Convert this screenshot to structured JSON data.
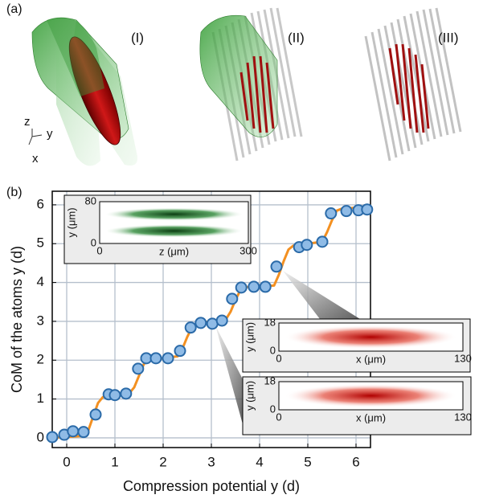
{
  "panel_labels": [
    "(a)",
    "(b)"
  ],
  "panel_a": {
    "labels": [
      "(I)",
      "(II)",
      "(III)"
    ],
    "axes": [
      "z",
      "y",
      "x"
    ]
  },
  "chart_data": {
    "type": "scatter",
    "xlabel": "Compression potential y (d)",
    "ylabel": "CoM of the atoms y (d)",
    "xlim": [
      -0.3,
      6.3
    ],
    "ylim": [
      -0.25,
      6.35
    ],
    "xticks": [
      0,
      1,
      2,
      3,
      4,
      5,
      6
    ],
    "yticks": [
      0,
      1,
      2,
      3,
      4,
      5,
      6
    ],
    "grid": true,
    "series": [
      {
        "mark": "line",
        "color": "#f39021",
        "x": [
          -0.3,
          0.35,
          0.45,
          0.55,
          0.65,
          0.75,
          1.3,
          1.4,
          1.5,
          1.6,
          1.7,
          2.3,
          2.4,
          2.5,
          2.6,
          2.7,
          3.3,
          3.4,
          3.5,
          3.6,
          3.7,
          4.3,
          4.4,
          4.5,
          4.6,
          4.7,
          5.3,
          5.4,
          5.5,
          5.6,
          5.7,
          6.3
        ],
        "values": [
          0,
          0.05,
          0.2,
          0.55,
          0.9,
          1.05,
          1.15,
          1.3,
          1.6,
          1.9,
          2.0,
          2.1,
          2.3,
          2.6,
          2.85,
          2.95,
          3.05,
          3.25,
          3.55,
          3.8,
          3.88,
          3.92,
          4.2,
          4.55,
          4.85,
          4.95,
          5.05,
          5.3,
          5.6,
          5.85,
          5.9,
          5.95
        ]
      },
      {
        "mark": "marker",
        "color": "#8fbbe6",
        "edge": "#2a6aa8",
        "x": [
          -0.3,
          -0.05,
          0.13,
          0.35,
          0.6,
          0.87,
          1.0,
          1.23,
          1.48,
          1.65,
          1.85,
          2.1,
          2.35,
          2.57,
          2.78,
          3.02,
          3.22,
          3.43,
          3.62,
          3.88,
          4.12,
          4.35,
          4.82,
          4.98,
          5.3,
          5.48,
          5.8,
          6.05,
          6.23
        ],
        "values": [
          0.02,
          0.08,
          0.17,
          0.15,
          0.6,
          1.12,
          1.1,
          1.14,
          1.78,
          2.05,
          2.05,
          2.05,
          2.24,
          2.84,
          2.96,
          2.94,
          3.02,
          3.58,
          3.87,
          3.89,
          3.89,
          4.41,
          4.91,
          4.97,
          5.05,
          5.78,
          5.84,
          5.86,
          5.88
        ]
      }
    ]
  },
  "insets": [
    {
      "ylabel": "y (μm)",
      "yticks": [
        0,
        80
      ],
      "ylim": [
        0,
        80
      ],
      "xlabel": "z (μm)",
      "xticks": [
        0,
        300
      ],
      "xlim": [
        0,
        300
      ]
    },
    {
      "ylabel": "y (μm)",
      "yticks": [
        0,
        18
      ],
      "ylim": [
        0,
        18
      ],
      "xlabel": "x (μm)",
      "xticks": [
        0,
        130
      ],
      "xlim": [
        0,
        130
      ]
    },
    {
      "ylabel": "y (μm)",
      "yticks": [
        0,
        18
      ],
      "ylim": [
        0,
        18
      ],
      "xlabel": "x (μm)",
      "xticks": [
        0,
        130
      ],
      "xlim": [
        0,
        130
      ]
    }
  ]
}
